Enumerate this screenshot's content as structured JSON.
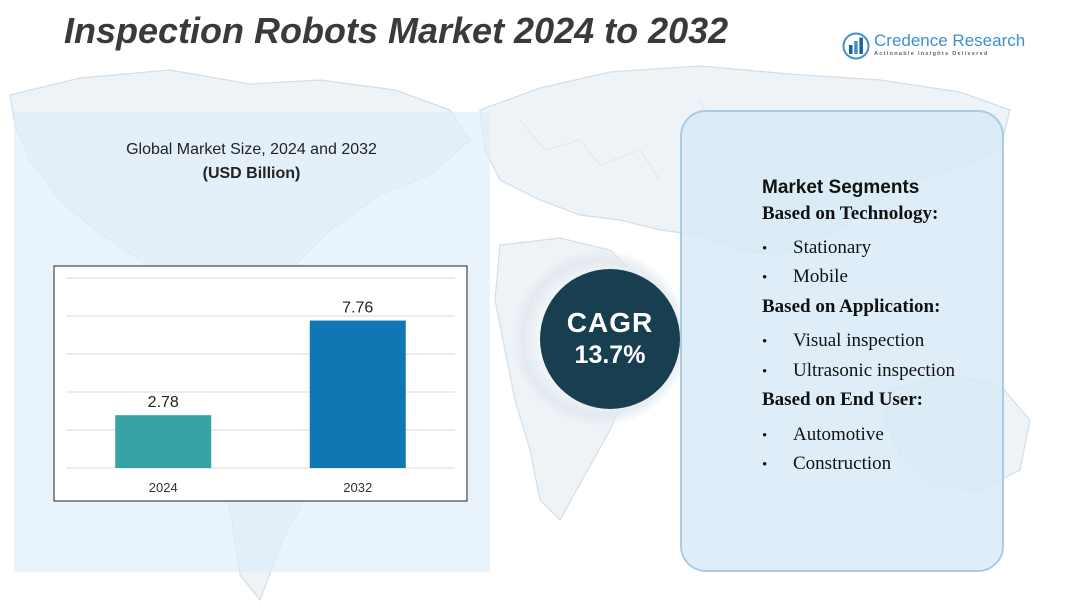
{
  "title": "Inspection Robots Market 2024 to 2032",
  "logo": {
    "name": "Credence Research",
    "tagline": "Actionable Insights Delivered",
    "icon": "bar-chart-globe-icon",
    "color": "#3f8fcf"
  },
  "chart_data": {
    "type": "bar",
    "title": "Global Market Size, 2024 and 2032",
    "subtitle": "(USD Billion)",
    "categories": [
      "2024",
      "2032"
    ],
    "values": [
      2.78,
      7.76
    ],
    "data_labels": [
      "2.78",
      "7.76"
    ],
    "ylim": [
      0,
      10
    ],
    "grid": true,
    "colors": [
      "#36a3a6",
      "#0f78b4"
    ],
    "xlabel": "",
    "ylabel": ""
  },
  "cagr": {
    "label": "CAGR",
    "value": "13.7%",
    "color": "#183f4f"
  },
  "segments": {
    "heading": "Market Segments",
    "bullet": "•",
    "groups": [
      {
        "title": "Based on Technology:",
        "items": [
          "Stationary",
          "Mobile"
        ]
      },
      {
        "title": "Based on Application:",
        "items": [
          "Visual inspection",
          "Ultrasonic inspection"
        ]
      },
      {
        "title": "Based on End User:",
        "items": [
          "Automotive",
          "Construction"
        ]
      }
    ]
  }
}
